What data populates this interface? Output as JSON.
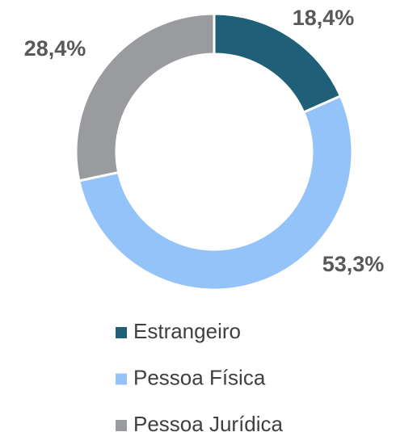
{
  "chart_data": {
    "type": "donut",
    "categories": [
      "Estrangeiro",
      "Pessoa Física",
      "Pessoa Jurídica"
    ],
    "values": [
      18.4,
      53.3,
      28.4
    ],
    "value_labels": [
      "18,4%",
      "53,3%",
      "28,4%"
    ],
    "colors": [
      "#1f5f78",
      "#93c3f9",
      "#9a9b9e"
    ],
    "legend": "bottom"
  }
}
